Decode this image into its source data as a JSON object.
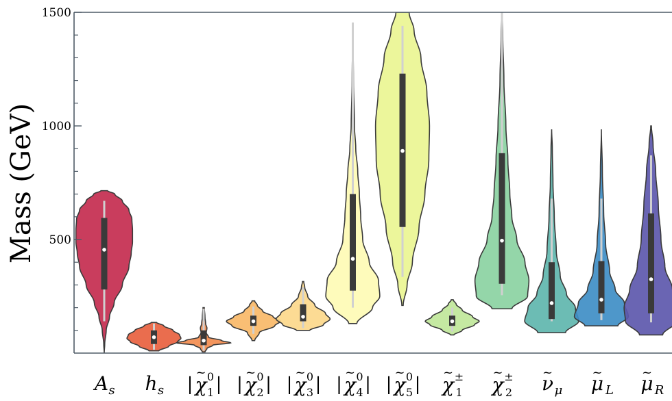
{
  "chart_data": {
    "type": "violin",
    "xlabel": "",
    "ylabel": "Mass (GeV)",
    "ylim": [
      0,
      1500
    ],
    "yticks": [
      {
        "value": 500,
        "label": "500"
      },
      {
        "value": 1000,
        "label": "1000"
      },
      {
        "value": 1500,
        "label": "1500"
      }
    ],
    "grid": false,
    "categories": [
      {
        "label": "A_s",
        "display": "As",
        "color": "#c42c4f",
        "median": 455,
        "q1": 280,
        "q3": 595,
        "whisker_low": 140,
        "whisker_high": 670,
        "min": 0,
        "max": 715,
        "shape": [
          [
            0,
            0
          ],
          [
            40,
            0.015
          ],
          [
            100,
            0.06
          ],
          [
            160,
            0.16
          ],
          [
            220,
            0.3
          ],
          [
            300,
            0.55
          ],
          [
            380,
            0.75
          ],
          [
            440,
            0.82
          ],
          [
            490,
            0.86
          ],
          [
            540,
            0.86
          ],
          [
            590,
            0.84
          ],
          [
            630,
            0.75
          ],
          [
            670,
            0.55
          ],
          [
            700,
            0.32
          ],
          [
            715,
            0.1
          ]
        ]
      },
      {
        "label": "h_s",
        "display": "hs",
        "color": "#e8613f",
        "median": 70,
        "q1": 40,
        "q3": 100,
        "whisker_low": 15,
        "whisker_high": 130,
        "min": 10,
        "max": 135,
        "shape": [
          [
            10,
            0.15
          ],
          [
            30,
            0.45
          ],
          [
            50,
            0.72
          ],
          [
            65,
            0.82
          ],
          [
            80,
            0.78
          ],
          [
            100,
            0.58
          ],
          [
            120,
            0.3
          ],
          [
            135,
            0.08
          ]
        ]
      },
      {
        "label": "|χ̃⁰₁|",
        "display": "χ1",
        "color": "#f28c4f",
        "median": 55,
        "q1": 35,
        "q3": 100,
        "whisker_low": 10,
        "whisker_high": 195,
        "min": 5,
        "max": 200,
        "shape": [
          [
            5,
            0.04
          ],
          [
            20,
            0.1
          ],
          [
            35,
            0.28
          ],
          [
            45,
            0.82
          ],
          [
            55,
            0.55
          ],
          [
            70,
            0.15
          ],
          [
            90,
            0.08
          ],
          [
            110,
            0.1
          ],
          [
            130,
            0.06
          ],
          [
            160,
            0.04
          ],
          [
            200,
            0.02
          ]
        ]
      },
      {
        "label": "|χ̃⁰₂|",
        "display": "χ2",
        "color": "#f8b868",
        "median": 140,
        "q1": 120,
        "q3": 165,
        "whisker_low": 85,
        "whisker_high": 205,
        "min": 55,
        "max": 230,
        "shape": [
          [
            55,
            0.04
          ],
          [
            90,
            0.18
          ],
          [
            120,
            0.65
          ],
          [
            140,
            0.82
          ],
          [
            160,
            0.6
          ],
          [
            185,
            0.28
          ],
          [
            210,
            0.12
          ],
          [
            230,
            0.04
          ]
        ]
      },
      {
        "label": "|χ̃⁰₃|",
        "display": "χ3",
        "color": "#fcd88b",
        "median": 160,
        "q1": 140,
        "q3": 215,
        "whisker_low": 110,
        "whisker_high": 290,
        "min": 100,
        "max": 315,
        "shape": [
          [
            100,
            0.2
          ],
          [
            125,
            0.62
          ],
          [
            150,
            0.82
          ],
          [
            175,
            0.68
          ],
          [
            210,
            0.36
          ],
          [
            250,
            0.14
          ],
          [
            290,
            0.05
          ],
          [
            315,
            0.02
          ]
        ]
      },
      {
        "label": "|χ̃⁰₄|",
        "display": "χ4",
        "color": "#fefbb5",
        "median": 415,
        "q1": 275,
        "q3": 700,
        "whisker_low": 200,
        "whisker_high": 1455,
        "min": 130,
        "max": 1455,
        "shape": [
          [
            130,
            0.12
          ],
          [
            200,
            0.6
          ],
          [
            250,
            0.82
          ],
          [
            320,
            0.78
          ],
          [
            400,
            0.5
          ],
          [
            500,
            0.3
          ],
          [
            600,
            0.24
          ],
          [
            700,
            0.2
          ],
          [
            800,
            0.15
          ],
          [
            900,
            0.09
          ],
          [
            1000,
            0.05
          ],
          [
            1200,
            0.02
          ],
          [
            1455,
            0
          ]
        ]
      },
      {
        "label": "|χ̃⁰₅|",
        "display": "χ5",
        "color": "#eaf593",
        "median": 890,
        "q1": 555,
        "q3": 1230,
        "whisker_low": 335,
        "whisker_high": 1440,
        "min": 210,
        "max": 1500,
        "shape": [
          [
            210,
            0.02
          ],
          [
            300,
            0.14
          ],
          [
            400,
            0.3
          ],
          [
            550,
            0.5
          ],
          [
            700,
            0.68
          ],
          [
            850,
            0.8
          ],
          [
            1000,
            0.82
          ],
          [
            1150,
            0.74
          ],
          [
            1300,
            0.56
          ],
          [
            1420,
            0.35
          ],
          [
            1500,
            0.2
          ]
        ]
      },
      {
        "label": "χ̃±₁",
        "display": "χ±1",
        "color": "#c0e79a",
        "median": 140,
        "q1": 120,
        "q3": 165,
        "whisker_low": 95,
        "whisker_high": 200,
        "min": 80,
        "max": 235,
        "shape": [
          [
            80,
            0.05
          ],
          [
            100,
            0.3
          ],
          [
            125,
            0.68
          ],
          [
            140,
            0.82
          ],
          [
            160,
            0.62
          ],
          [
            190,
            0.3
          ],
          [
            215,
            0.12
          ],
          [
            235,
            0.03
          ]
        ]
      },
      {
        "label": "χ̃±₂",
        "display": "χ±2",
        "color": "#8bd2a2",
        "median": 495,
        "q1": 305,
        "q3": 880,
        "whisker_low": 255,
        "whisker_high": 1500,
        "min": 195,
        "max": 1500,
        "shape": [
          [
            195,
            0.3
          ],
          [
            250,
            0.78
          ],
          [
            320,
            0.82
          ],
          [
            400,
            0.7
          ],
          [
            500,
            0.45
          ],
          [
            600,
            0.3
          ],
          [
            700,
            0.24
          ],
          [
            850,
            0.18
          ],
          [
            1000,
            0.12
          ],
          [
            1200,
            0.06
          ],
          [
            1400,
            0.025
          ],
          [
            1500,
            0.01
          ]
        ]
      },
      {
        "label": "ν̃_μ",
        "display": "νμ",
        "color": "#5fb6ae",
        "median": 220,
        "q1": 150,
        "q3": 400,
        "whisker_low": 140,
        "whisker_high": 680,
        "min": 90,
        "max": 985,
        "shape": [
          [
            90,
            0.42
          ],
          [
            140,
            0.82
          ],
          [
            200,
            0.72
          ],
          [
            260,
            0.45
          ],
          [
            340,
            0.26
          ],
          [
            450,
            0.14
          ],
          [
            600,
            0.08
          ],
          [
            750,
            0.04
          ],
          [
            900,
            0.02
          ],
          [
            985,
            0
          ]
        ]
      },
      {
        "label": "μ̃_L",
        "display": "μL",
        "color": "#3f8ec5",
        "median": 235,
        "q1": 175,
        "q3": 405,
        "whisker_low": 145,
        "whisker_high": 680,
        "min": 120,
        "max": 985,
        "shape": [
          [
            120,
            0.5
          ],
          [
            160,
            0.82
          ],
          [
            220,
            0.7
          ],
          [
            280,
            0.42
          ],
          [
            360,
            0.25
          ],
          [
            480,
            0.13
          ],
          [
            620,
            0.07
          ],
          [
            800,
            0.03
          ],
          [
            985,
            0
          ]
        ]
      },
      {
        "label": "μ̃_R",
        "display": "μR",
        "color": "#5d58ac",
        "median": 325,
        "q1": 175,
        "q3": 615,
        "whisker_low": 135,
        "whisker_high": 870,
        "min": 80,
        "max": 1000,
        "shape": [
          [
            80,
            0.35
          ],
          [
            140,
            0.78
          ],
          [
            200,
            0.82
          ],
          [
            280,
            0.65
          ],
          [
            380,
            0.42
          ],
          [
            500,
            0.3
          ],
          [
            650,
            0.22
          ],
          [
            800,
            0.14
          ],
          [
            920,
            0.06
          ],
          [
            1000,
            0.01
          ]
        ]
      }
    ]
  }
}
